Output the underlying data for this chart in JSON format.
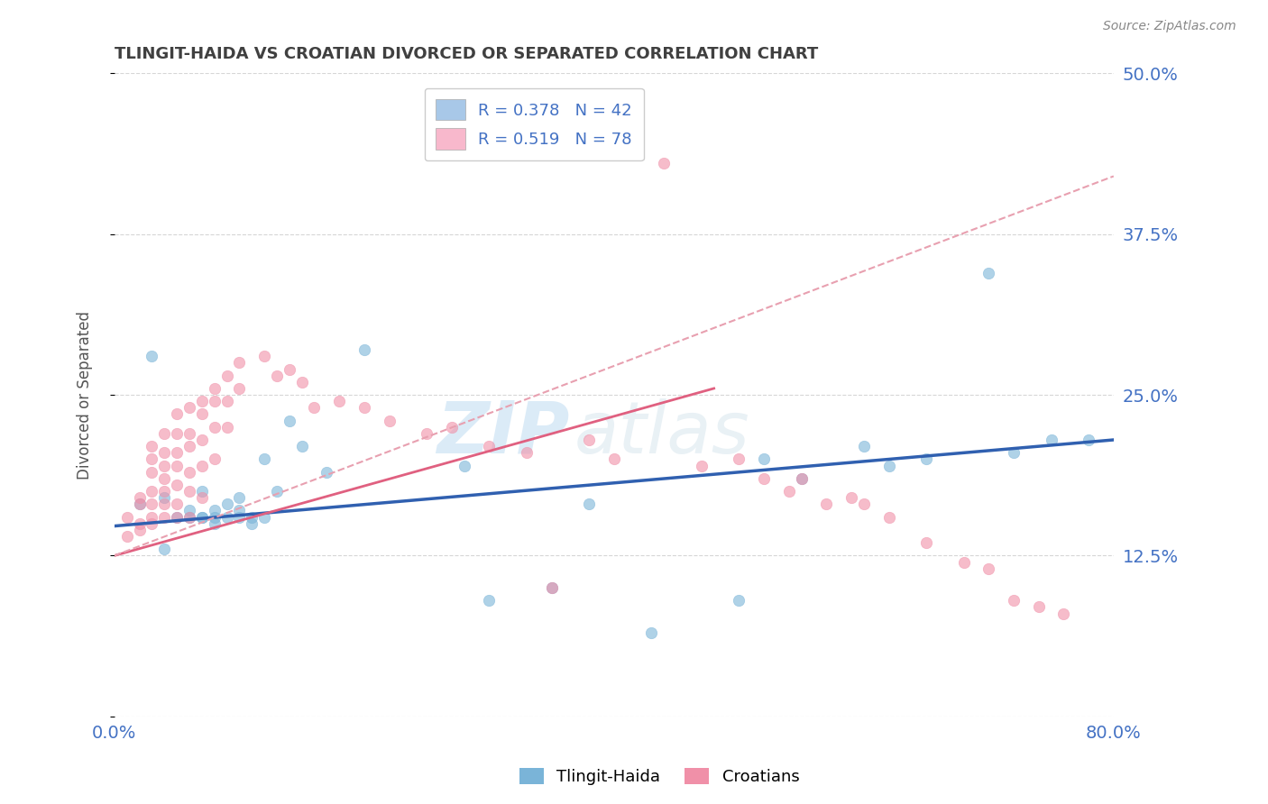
{
  "title": "TLINGIT-HAIDA VS CROATIAN DIVORCED OR SEPARATED CORRELATION CHART",
  "source": "Source: ZipAtlas.com",
  "ylabel": "Divorced or Separated",
  "xlim": [
    0.0,
    0.8
  ],
  "ylim": [
    0.0,
    0.5
  ],
  "yticks": [
    0.0,
    0.125,
    0.25,
    0.375,
    0.5
  ],
  "ytick_labels": [
    "",
    "12.5%",
    "25.0%",
    "37.5%",
    "50.0%"
  ],
  "xtick_labels": [
    "0.0%",
    "80.0%"
  ],
  "legend_r_n": [
    {
      "label": "R = 0.378   N = 42",
      "color": "#a8c8e8"
    },
    {
      "label": "R = 0.519   N = 78",
      "color": "#f8b8cc"
    }
  ],
  "watermark_zip": "ZIP",
  "watermark_atlas": "atlas",
  "background_color": "#ffffff",
  "grid_color": "#cccccc",
  "title_color": "#404040",
  "axis_label_color": "#4472c4",
  "tlingit_color": "#7ab4d8",
  "croatian_color": "#f090a8",
  "trendline_tlingit_color": "#3060b0",
  "trendline_croatian_solid_color": "#e06080",
  "trendline_croatian_dashed_color": "#e8a0b0",
  "tlingit_haida_points": [
    [
      0.02,
      0.165
    ],
    [
      0.03,
      0.28
    ],
    [
      0.04,
      0.17
    ],
    [
      0.04,
      0.13
    ],
    [
      0.05,
      0.155
    ],
    [
      0.06,
      0.16
    ],
    [
      0.06,
      0.155
    ],
    [
      0.07,
      0.155
    ],
    [
      0.07,
      0.175
    ],
    [
      0.07,
      0.155
    ],
    [
      0.08,
      0.16
    ],
    [
      0.08,
      0.155
    ],
    [
      0.08,
      0.15
    ],
    [
      0.09,
      0.165
    ],
    [
      0.09,
      0.155
    ],
    [
      0.1,
      0.17
    ],
    [
      0.1,
      0.16
    ],
    [
      0.1,
      0.155
    ],
    [
      0.11,
      0.155
    ],
    [
      0.11,
      0.15
    ],
    [
      0.12,
      0.155
    ],
    [
      0.12,
      0.2
    ],
    [
      0.13,
      0.175
    ],
    [
      0.14,
      0.23
    ],
    [
      0.15,
      0.21
    ],
    [
      0.17,
      0.19
    ],
    [
      0.2,
      0.285
    ],
    [
      0.28,
      0.195
    ],
    [
      0.3,
      0.09
    ],
    [
      0.35,
      0.1
    ],
    [
      0.38,
      0.165
    ],
    [
      0.43,
      0.065
    ],
    [
      0.5,
      0.09
    ],
    [
      0.52,
      0.2
    ],
    [
      0.55,
      0.185
    ],
    [
      0.6,
      0.21
    ],
    [
      0.62,
      0.195
    ],
    [
      0.65,
      0.2
    ],
    [
      0.7,
      0.345
    ],
    [
      0.72,
      0.205
    ],
    [
      0.75,
      0.215
    ],
    [
      0.78,
      0.215
    ]
  ],
  "croatians_points": [
    [
      0.01,
      0.155
    ],
    [
      0.01,
      0.14
    ],
    [
      0.02,
      0.17
    ],
    [
      0.02,
      0.165
    ],
    [
      0.02,
      0.15
    ],
    [
      0.02,
      0.145
    ],
    [
      0.03,
      0.21
    ],
    [
      0.03,
      0.2
    ],
    [
      0.03,
      0.19
    ],
    [
      0.03,
      0.175
    ],
    [
      0.03,
      0.165
    ],
    [
      0.03,
      0.155
    ],
    [
      0.03,
      0.15
    ],
    [
      0.04,
      0.22
    ],
    [
      0.04,
      0.205
    ],
    [
      0.04,
      0.195
    ],
    [
      0.04,
      0.185
    ],
    [
      0.04,
      0.175
    ],
    [
      0.04,
      0.165
    ],
    [
      0.04,
      0.155
    ],
    [
      0.05,
      0.235
    ],
    [
      0.05,
      0.22
    ],
    [
      0.05,
      0.205
    ],
    [
      0.05,
      0.195
    ],
    [
      0.05,
      0.18
    ],
    [
      0.05,
      0.165
    ],
    [
      0.05,
      0.155
    ],
    [
      0.06,
      0.24
    ],
    [
      0.06,
      0.22
    ],
    [
      0.06,
      0.21
    ],
    [
      0.06,
      0.19
    ],
    [
      0.06,
      0.175
    ],
    [
      0.06,
      0.155
    ],
    [
      0.07,
      0.245
    ],
    [
      0.07,
      0.235
    ],
    [
      0.07,
      0.215
    ],
    [
      0.07,
      0.195
    ],
    [
      0.07,
      0.17
    ],
    [
      0.08,
      0.255
    ],
    [
      0.08,
      0.245
    ],
    [
      0.08,
      0.225
    ],
    [
      0.08,
      0.2
    ],
    [
      0.09,
      0.265
    ],
    [
      0.09,
      0.245
    ],
    [
      0.09,
      0.225
    ],
    [
      0.1,
      0.275
    ],
    [
      0.1,
      0.255
    ],
    [
      0.12,
      0.28
    ],
    [
      0.13,
      0.265
    ],
    [
      0.14,
      0.27
    ],
    [
      0.15,
      0.26
    ],
    [
      0.16,
      0.24
    ],
    [
      0.18,
      0.245
    ],
    [
      0.2,
      0.24
    ],
    [
      0.22,
      0.23
    ],
    [
      0.25,
      0.22
    ],
    [
      0.27,
      0.225
    ],
    [
      0.3,
      0.21
    ],
    [
      0.33,
      0.205
    ],
    [
      0.35,
      0.1
    ],
    [
      0.38,
      0.215
    ],
    [
      0.4,
      0.2
    ],
    [
      0.44,
      0.43
    ],
    [
      0.47,
      0.195
    ],
    [
      0.5,
      0.2
    ],
    [
      0.52,
      0.185
    ],
    [
      0.54,
      0.175
    ],
    [
      0.55,
      0.185
    ],
    [
      0.57,
      0.165
    ],
    [
      0.59,
      0.17
    ],
    [
      0.6,
      0.165
    ],
    [
      0.62,
      0.155
    ],
    [
      0.65,
      0.135
    ],
    [
      0.68,
      0.12
    ],
    [
      0.7,
      0.115
    ],
    [
      0.72,
      0.09
    ],
    [
      0.74,
      0.085
    ],
    [
      0.76,
      0.08
    ]
  ],
  "trendline_tlingit": [
    0.0,
    0.148,
    0.8,
    0.215
  ],
  "trendline_croatian_solid": [
    0.0,
    0.125,
    0.48,
    0.255
  ],
  "trendline_croatian_dashed": [
    0.0,
    0.125,
    0.8,
    0.42
  ]
}
